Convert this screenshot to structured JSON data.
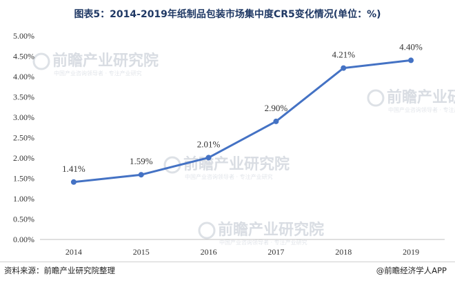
{
  "chart_data": {
    "type": "line",
    "title": "图表5：2014-2019年纸制品包装市场集中度CR5变化情况(单位：%)",
    "categories": [
      "2014",
      "2015",
      "2016",
      "2017",
      "2018",
      "2019"
    ],
    "series": [
      {
        "values": [
          1.41,
          1.59,
          2.01,
          2.9,
          4.21,
          4.4
        ]
      }
    ],
    "data_labels": [
      "1.41%",
      "1.59%",
      "2.01%",
      "2.90%",
      "4.21%",
      "4.40%"
    ],
    "y_ticks": [
      "0.00%",
      "0.50%",
      "1.00%",
      "1.50%",
      "2.00%",
      "2.50%",
      "3.00%",
      "3.50%",
      "4.00%",
      "4.50%",
      "5.00%"
    ],
    "ylim": [
      0,
      5
    ],
    "grid": false,
    "line_color": "#4472c4"
  },
  "watermark": {
    "text": "前瞻产业研究院",
    "sub": "中国产业咨询领导者 · 专注产业研究"
  },
  "footer": {
    "source": "资料来源：前瞻产业研究院整理",
    "brand": "@前瞻经济学人APP"
  }
}
